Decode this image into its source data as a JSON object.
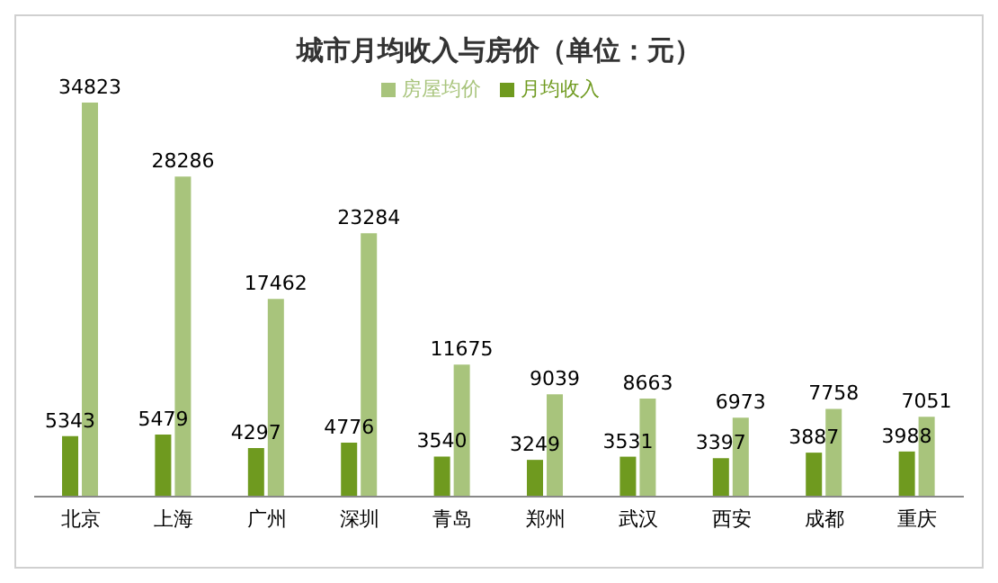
{
  "chart_data": {
    "type": "bar",
    "title": "城市月均收入与房价（单位：元）",
    "categories": [
      "北京",
      "上海",
      "广州",
      "深圳",
      "青岛",
      "郑州",
      "武汉",
      "西安",
      "成都",
      "重庆"
    ],
    "series": [
      {
        "name": "月均收入",
        "color": "#6f9a1f",
        "values": [
          5343,
          5479,
          4297,
          4776,
          3540,
          3249,
          3531,
          3397,
          3887,
          3988
        ]
      },
      {
        "name": "房屋均价",
        "color": "#a8c47c",
        "values": [
          34823,
          28286,
          17462,
          23284,
          11675,
          9039,
          8663,
          6973,
          7758,
          7051
        ]
      }
    ],
    "data_labels": true,
    "legend": "top",
    "tick_labels": "x",
    "grid": false
  }
}
